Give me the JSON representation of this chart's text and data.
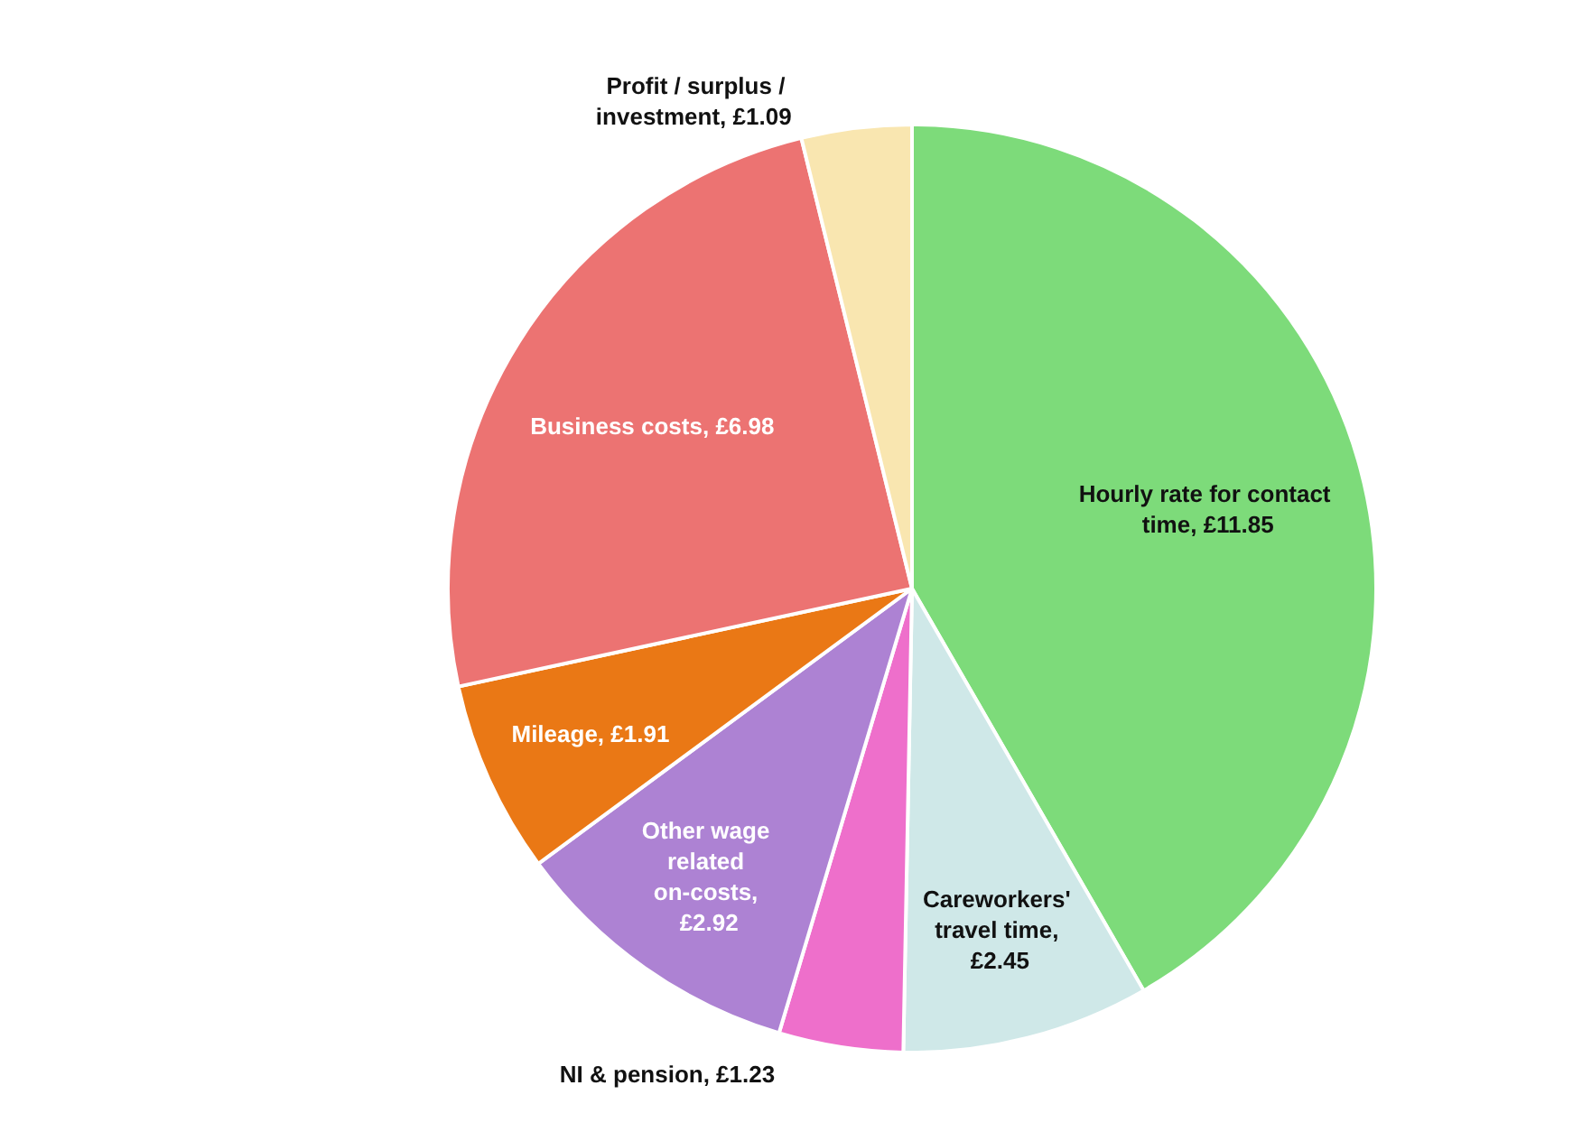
{
  "chart_data": {
    "type": "pie",
    "categories": [
      "Hourly rate for contact time, £11.85",
      "Careworkers' travel time, £2.45",
      "NI & pension, £1.23",
      "Other wage related on-costs, £2.92",
      "Mileage, £1.91",
      "Business costs, £6.98",
      "Profit / surplus / investment, £1.09"
    ],
    "values": [
      11.85,
      2.45,
      1.23,
      2.92,
      1.91,
      6.98,
      1.09
    ],
    "colors": [
      "#7ddb7a",
      "#cfe8e8",
      "#ee6fcb",
      "#ad82d3",
      "#ea7815",
      "#ec7372",
      "#f9e6b0"
    ],
    "legend": false
  }
}
